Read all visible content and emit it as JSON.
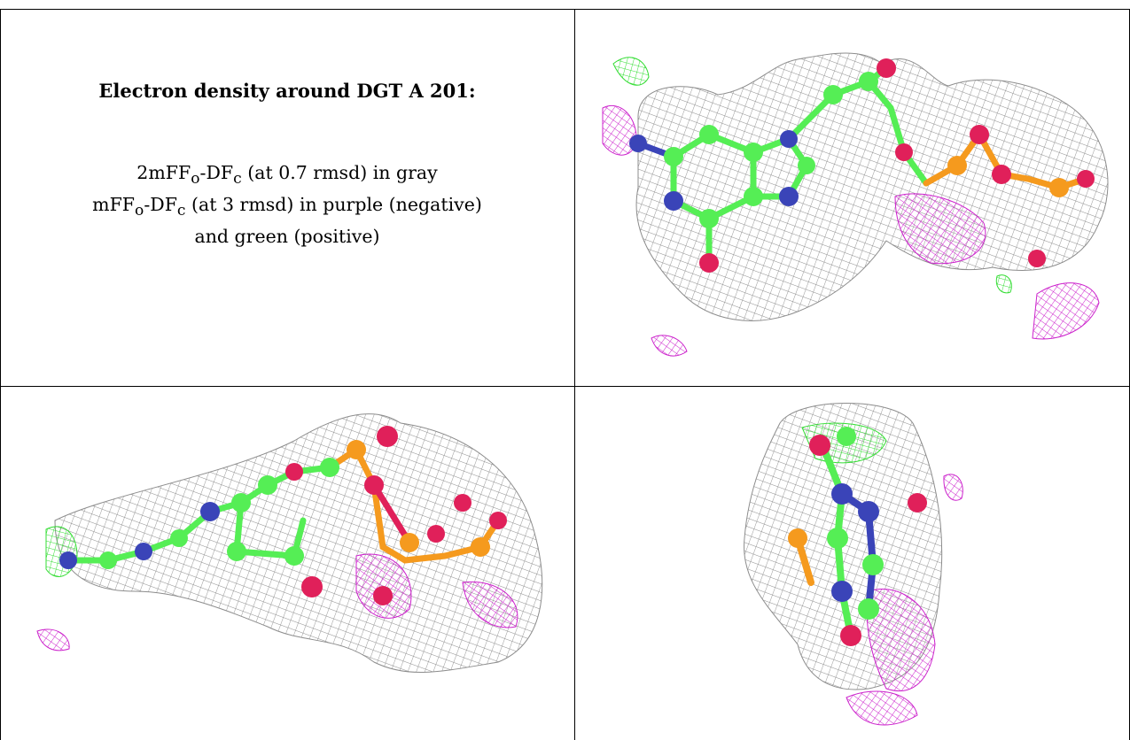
{
  "caption": {
    "title": "Electron density around DGT A 201:",
    "line1": {
      "pre": "2mF",
      "sub1": "o",
      "mid": "-DF",
      "sub2": "c",
      "post": " (at 0.7 rmsd) in gray"
    },
    "line2": {
      "pre": "mF",
      "sub1": "o",
      "mid": "-DF",
      "sub2": "c",
      "post": " (at 3 rmsd) in purple (negative)"
    },
    "line3": "and green (positive)"
  },
  "colors": {
    "mesh_2fofc": "#8c8c8c",
    "mesh_negative": "#cc22cc",
    "mesh_positive": "#33dd33",
    "carbon": "#55ee55",
    "nitrogen": "#3a44b8",
    "oxygen": "#e0205a",
    "phosphorus": "#f59a1e"
  },
  "panels": [
    {
      "view": "top-right"
    },
    {
      "view": "bottom-left"
    },
    {
      "view": "bottom-right"
    }
  ]
}
